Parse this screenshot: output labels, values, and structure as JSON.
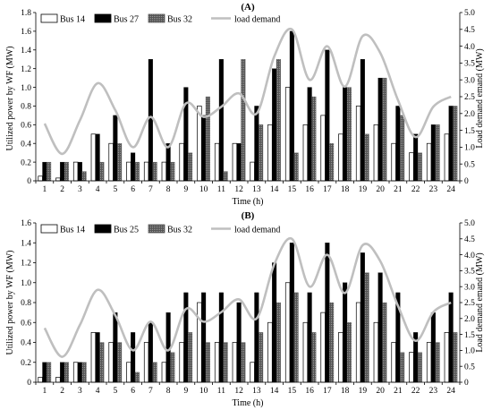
{
  "colors": {
    "bus_a": "#ffffff",
    "bus_b": "#000000",
    "bus_c": "#555555",
    "load": "#bfbfbf",
    "axis": "#000000"
  },
  "chart_data": [
    {
      "type": "bar",
      "title": "(A)",
      "xlabel": "Time (h)",
      "ylabel": "Utilized power by WF (MW)",
      "y2label": "Load demand emand (MW)",
      "categories": [
        "1",
        "2",
        "3",
        "4",
        "5",
        "6",
        "7",
        "8",
        "9",
        "10",
        "11",
        "12",
        "13",
        "14",
        "15",
        "16",
        "17",
        "18",
        "19",
        "20",
        "21",
        "22",
        "23",
        "24"
      ],
      "ylim": [
        0,
        1.8
      ],
      "yticks": [
        "0",
        "0.2",
        "0.4",
        "0.6",
        "0.8",
        "1.0",
        "1.2",
        "1.4",
        "1.6",
        "1.8"
      ],
      "y2lim": [
        0,
        5
      ],
      "y2ticks": [
        "0",
        "0.5",
        "1.0",
        "1.5",
        "2.0",
        "2.5",
        "3.0",
        "3.5",
        "4.0",
        "4.5",
        "5.0"
      ],
      "legend_position": "top-left",
      "grid": false,
      "series": [
        {
          "name": "Bus 14",
          "kind": "bar",
          "style": "white",
          "values": [
            0.05,
            0.03,
            0.2,
            0.5,
            0.4,
            0.2,
            0.2,
            0.2,
            0.4,
            0.8,
            0.4,
            0.4,
            0.2,
            0.6,
            1.0,
            0.6,
            0.7,
            0.5,
            0.8,
            0.6,
            0.4,
            0.3,
            0.4,
            0.5
          ]
        },
        {
          "name": "Bus 27",
          "kind": "bar",
          "style": "black",
          "values": [
            0.2,
            0.2,
            0.2,
            0.5,
            0.7,
            0.3,
            1.3,
            0.4,
            1.0,
            0.7,
            1.3,
            0.4,
            0.8,
            1.2,
            1.6,
            1.0,
            1.4,
            1.0,
            1.3,
            1.1,
            0.8,
            0.5,
            0.6,
            0.8
          ]
        },
        {
          "name": "Bus 32",
          "kind": "bar",
          "style": "gray",
          "values": [
            0.2,
            0.2,
            0.1,
            0.2,
            0.4,
            0.2,
            0.2,
            0.2,
            0.3,
            0.9,
            0.1,
            1.3,
            0.6,
            1.3,
            0.3,
            0.9,
            0.4,
            1.0,
            0.5,
            1.1,
            0.7,
            0.3,
            0.6,
            0.8
          ]
        },
        {
          "name": "load demand",
          "kind": "line",
          "axis": "right",
          "values": [
            1.7,
            0.8,
            1.8,
            2.9,
            2.1,
            1.0,
            1.9,
            1.0,
            2.3,
            1.9,
            2.2,
            2.6,
            2.0,
            3.7,
            4.5,
            3.0,
            4.0,
            2.8,
            4.3,
            3.8,
            2.4,
            1.3,
            2.2,
            2.5
          ]
        }
      ]
    },
    {
      "type": "bar",
      "title": "(B)",
      "xlabel": "Time (h)",
      "ylabel": "Utilized power by WF (MW)",
      "y2label": "Load demand emand (MW)",
      "categories": [
        "1",
        "2",
        "3",
        "4",
        "5",
        "6",
        "7",
        "8",
        "9",
        "10",
        "11",
        "12",
        "13",
        "14",
        "15",
        "16",
        "17",
        "18",
        "19",
        "20",
        "21",
        "22",
        "23",
        "24"
      ],
      "ylim": [
        0,
        1.6
      ],
      "yticks": [
        "0",
        "0.2",
        "0.4",
        "0.6",
        "0.8",
        "1.0",
        "1.2",
        "1.4",
        "1.6"
      ],
      "y2lim": [
        0,
        5
      ],
      "y2ticks": [
        "0",
        "0.5",
        "1.0",
        "1.5",
        "2.0",
        "2.5",
        "3.0",
        "3.5",
        "4.0",
        "4.5",
        "5.0"
      ],
      "legend_position": "top-left",
      "grid": false,
      "series": [
        {
          "name": "Bus 14",
          "kind": "bar",
          "style": "white",
          "values": [
            0.05,
            0.05,
            0.2,
            0.5,
            0.4,
            0.2,
            0.4,
            0.2,
            0.4,
            0.8,
            0.4,
            0.4,
            0.2,
            0.6,
            1.0,
            0.6,
            0.7,
            0.5,
            0.8,
            0.6,
            0.4,
            0.3,
            0.4,
            0.5
          ]
        },
        {
          "name": "Bus 25",
          "kind": "bar",
          "style": "black",
          "values": [
            0.2,
            0.2,
            0.2,
            0.5,
            0.7,
            0.5,
            0.6,
            0.7,
            0.9,
            0.9,
            0.9,
            0.8,
            0.9,
            1.2,
            1.4,
            0.9,
            1.4,
            1.0,
            1.3,
            1.1,
            0.9,
            0.5,
            0.7,
            0.9
          ]
        },
        {
          "name": "Bus 32",
          "kind": "bar",
          "style": "gray",
          "values": [
            0.2,
            0.2,
            0.2,
            0.4,
            0.4,
            0.1,
            0.2,
            0.3,
            0.5,
            0.4,
            0.4,
            0.4,
            0.5,
            0.8,
            0.9,
            0.5,
            0.8,
            0.6,
            1.1,
            0.8,
            0.3,
            0.3,
            0.4,
            0.5
          ]
        },
        {
          "name": "load demand",
          "kind": "line",
          "axis": "right",
          "values": [
            1.7,
            0.8,
            1.8,
            2.9,
            2.1,
            1.0,
            1.9,
            1.0,
            2.3,
            1.9,
            2.2,
            2.6,
            2.0,
            3.7,
            4.5,
            3.0,
            4.0,
            2.8,
            4.3,
            3.8,
            2.4,
            1.3,
            2.2,
            2.5
          ]
        }
      ]
    }
  ]
}
